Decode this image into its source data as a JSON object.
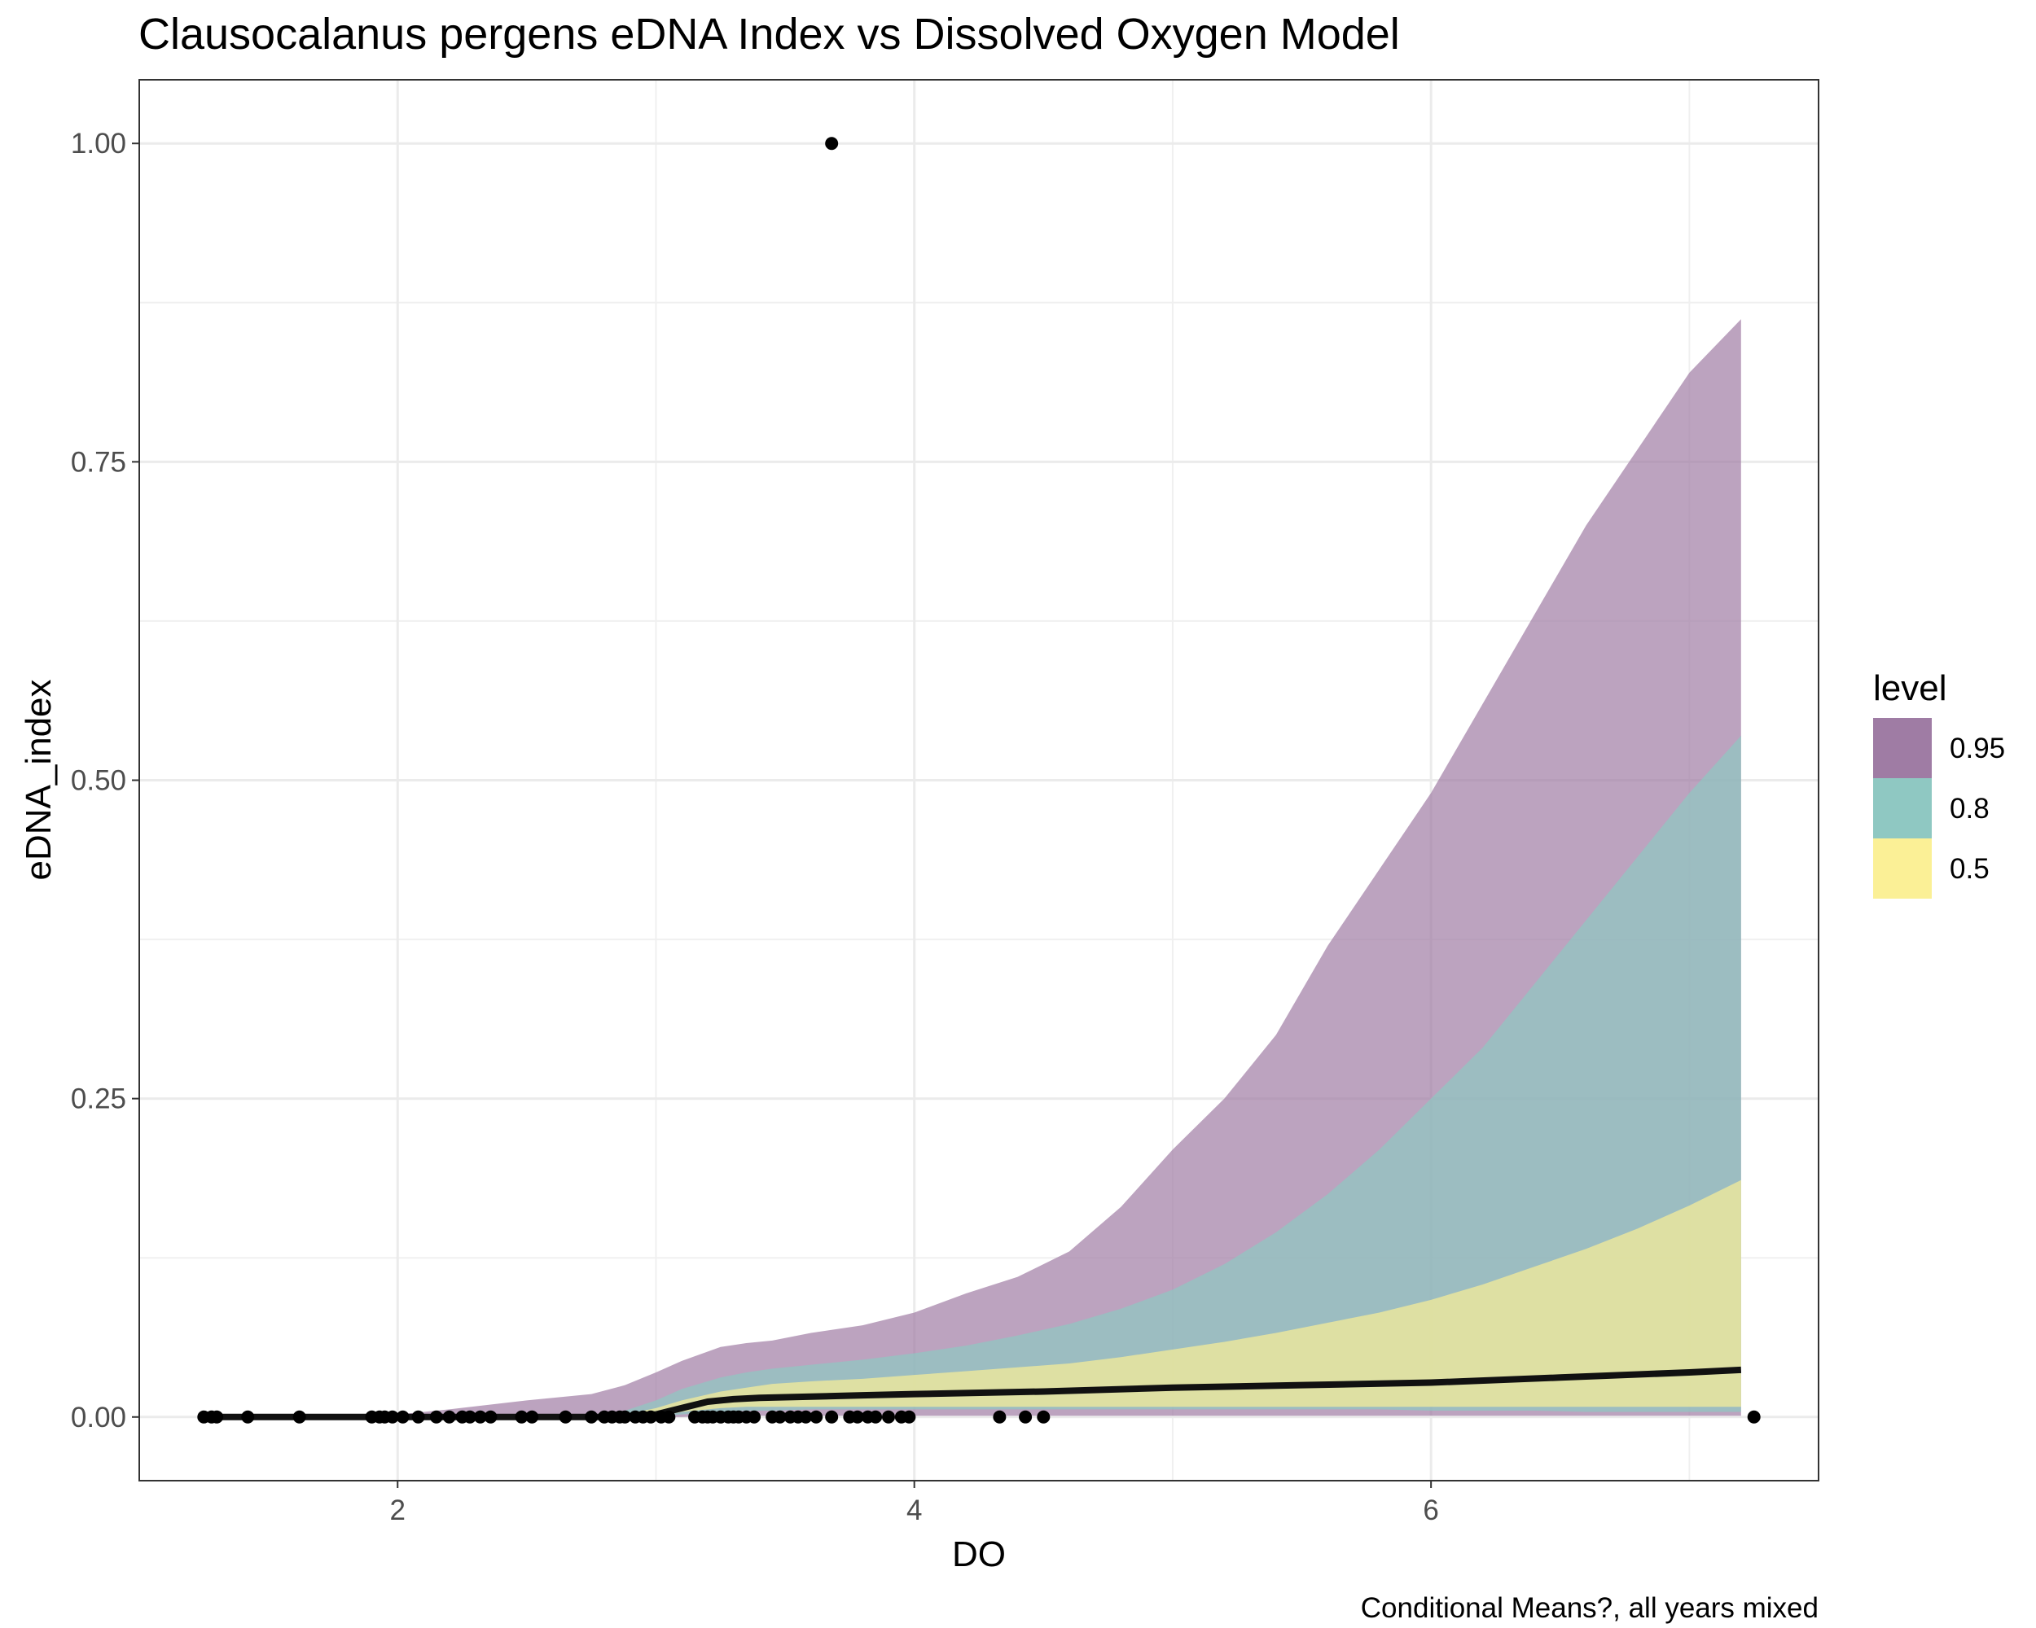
{
  "chart_data": {
    "type": "area",
    "title": "Clausocalanus pergens eDNA Index vs Dissolved Oxygen Model",
    "xlabel": "DO",
    "ylabel": "eDNA_index",
    "caption": "Conditional Means?, all years mixed",
    "xlim": [
      1.0,
      7.5
    ],
    "ylim": [
      -0.05,
      1.05
    ],
    "x_ticks": [
      2,
      4,
      6
    ],
    "x_tick_labels": [
      "2",
      "4",
      "6"
    ],
    "y_ticks": [
      0.0,
      0.25,
      0.5,
      0.75,
      1.0
    ],
    "y_tick_labels": [
      "0.00",
      "0.25",
      "0.50",
      "0.75",
      "1.00"
    ],
    "grid": true,
    "legend": {
      "title": "level",
      "position": "right",
      "entries": [
        {
          "label": "0.95",
          "color": "#9f7ca4"
        },
        {
          "label": "0.8",
          "color": "#8fc8c2"
        },
        {
          "label": "0.5",
          "color": "#fbf096"
        }
      ]
    },
    "ribbon_x": [
      1.3,
      2.0,
      2.2,
      2.5,
      2.75,
      2.88,
      3.0,
      3.1,
      3.25,
      3.35,
      3.45,
      3.6,
      3.8,
      4.0,
      4.2,
      4.4,
      4.6,
      4.8,
      5.0,
      5.2,
      5.4,
      5.6,
      5.8,
      6.0,
      6.2,
      6.4,
      6.6,
      6.8,
      7.0,
      7.2
    ],
    "series": [
      {
        "name": "0.95",
        "color": "#9f7ca4",
        "lower": [
          0,
          0,
          0,
          0,
          0,
          0,
          0,
          0,
          0.001,
          0.001,
          0.001,
          0.001,
          0.001,
          0.001,
          0.001,
          0.001,
          0.001,
          0.001,
          0.001,
          0.001,
          0.001,
          0.001,
          0.001,
          0.001,
          0.001,
          0.001,
          0.001,
          0.001,
          0.001,
          0.001
        ],
        "upper": [
          0,
          0.002,
          0.006,
          0.013,
          0.018,
          0.025,
          0.035,
          0.044,
          0.055,
          0.058,
          0.06,
          0.066,
          0.072,
          0.082,
          0.097,
          0.11,
          0.13,
          0.165,
          0.21,
          0.25,
          0.3,
          0.37,
          0.43,
          0.49,
          0.56,
          0.63,
          0.7,
          0.76,
          0.82,
          0.862
        ]
      },
      {
        "name": "0.8",
        "color": "#8fc8c2",
        "lower": [
          0,
          0,
          0,
          0,
          0,
          0,
          0,
          0.002,
          0.004,
          0.005,
          0.005,
          0.006,
          0.006,
          0.006,
          0.006,
          0.006,
          0.006,
          0.006,
          0.006,
          0.006,
          0.006,
          0.006,
          0.006,
          0.005,
          0.005,
          0.005,
          0.004,
          0.004,
          0.004,
          0.004
        ],
        "upper": [
          0,
          0,
          0,
          0,
          0.001,
          0.005,
          0.013,
          0.022,
          0.031,
          0.035,
          0.038,
          0.041,
          0.045,
          0.05,
          0.056,
          0.064,
          0.073,
          0.085,
          0.1,
          0.12,
          0.145,
          0.175,
          0.21,
          0.25,
          0.29,
          0.34,
          0.39,
          0.44,
          0.49,
          0.535
        ]
      },
      {
        "name": "0.5",
        "color": "#fbf096",
        "lower": [
          0,
          0,
          0,
          0,
          0,
          0,
          0,
          0.004,
          0.007,
          0.008,
          0.008,
          0.008,
          0.008,
          0.008,
          0.008,
          0.008,
          0.008,
          0.008,
          0.008,
          0.008,
          0.008,
          0.008,
          0.008,
          0.008,
          0.008,
          0.008,
          0.008,
          0.008,
          0.008,
          0.008
        ],
        "upper": [
          0,
          0,
          0,
          0,
          0,
          0.002,
          0.007,
          0.013,
          0.02,
          0.023,
          0.026,
          0.028,
          0.03,
          0.033,
          0.036,
          0.039,
          0.042,
          0.047,
          0.053,
          0.059,
          0.066,
          0.074,
          0.082,
          0.092,
          0.104,
          0.118,
          0.132,
          0.148,
          0.166,
          0.186
        ]
      }
    ],
    "mean_line": {
      "x": [
        1.3,
        2.9,
        3.0,
        3.1,
        3.2,
        3.3,
        3.4,
        3.6,
        3.8,
        4.0,
        4.5,
        5.0,
        5.5,
        6.0,
        6.5,
        7.0,
        7.2
      ],
      "y": [
        0,
        0,
        0.002,
        0.007,
        0.012,
        0.014,
        0.015,
        0.016,
        0.017,
        0.018,
        0.02,
        0.023,
        0.025,
        0.027,
        0.031,
        0.035,
        0.037
      ]
    },
    "points": {
      "x": [
        1.25,
        1.28,
        1.3,
        1.42,
        1.62,
        1.9,
        1.93,
        1.95,
        1.98,
        2.02,
        2.08,
        2.15,
        2.2,
        2.25,
        2.28,
        2.32,
        2.36,
        2.48,
        2.52,
        2.65,
        2.75,
        2.8,
        2.83,
        2.86,
        2.88,
        2.92,
        2.95,
        2.98,
        3.02,
        3.05,
        3.15,
        3.18,
        3.2,
        3.22,
        3.25,
        3.28,
        3.3,
        3.32,
        3.35,
        3.38,
        3.45,
        3.48,
        3.52,
        3.55,
        3.58,
        3.62,
        3.68,
        3.75,
        3.78,
        3.82,
        3.85,
        3.9,
        3.95,
        3.98,
        4.33,
        4.43,
        4.5,
        3.68,
        7.25
      ],
      "y": [
        0,
        0,
        0,
        0,
        0,
        0,
        0,
        0,
        0,
        0,
        0,
        0,
        0,
        0,
        0,
        0,
        0,
        0,
        0,
        0,
        0,
        0,
        0,
        0,
        0,
        0,
        0,
        0,
        0,
        0,
        0,
        0,
        0,
        0,
        0,
        0,
        0,
        0,
        0,
        0,
        0,
        0,
        0,
        0,
        0,
        0,
        0,
        0,
        0,
        0,
        0,
        0,
        0,
        0,
        0,
        0,
        0,
        1.0,
        0
      ]
    }
  }
}
